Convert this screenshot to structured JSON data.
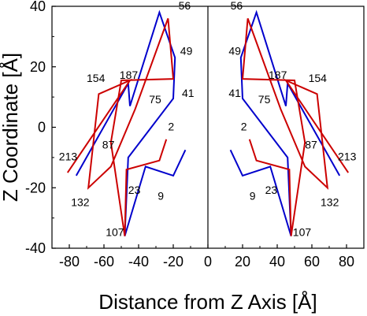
{
  "chart_data": {
    "type": "line",
    "title": "",
    "xlabel": "Distance from Z Axis [Å]",
    "ylabel": "Z Coordinate [Å]",
    "xlim": [
      -90,
      90
    ],
    "ylim": [
      -40,
      40
    ],
    "x_ticks": [
      -80,
      -60,
      -40,
      -20,
      0,
      20,
      40,
      60,
      80
    ],
    "y_ticks": [
      -40,
      -20,
      0,
      20,
      40
    ],
    "grid": false,
    "legend": "none",
    "colors": {
      "blue": "#0000cc",
      "red": "#cc0000"
    },
    "series": [
      {
        "color": "#0000cc",
        "side": "left",
        "points": [
          [
            -13,
            -7.5
          ],
          [
            -20,
            -16
          ],
          [
            -36,
            -13
          ],
          [
            -48,
            -36
          ],
          [
            -46,
            -10
          ],
          [
            -20,
            9.5
          ],
          [
            -19,
            23
          ],
          [
            -28,
            38
          ],
          [
            -45,
            7
          ],
          [
            -46,
            14.5
          ],
          [
            -76,
            -16
          ]
        ]
      },
      {
        "color": "#cc0000",
        "side": "left",
        "points": [
          [
            -24,
            -4
          ],
          [
            -28,
            -11
          ],
          [
            -47,
            -14
          ],
          [
            -48,
            -36
          ],
          [
            -56,
            -5
          ],
          [
            -50,
            15.5
          ],
          [
            -20,
            16
          ],
          [
            -23,
            36
          ],
          [
            -42,
            6
          ],
          [
            -56,
            -13
          ],
          [
            -69,
            -20
          ],
          [
            -63,
            11
          ],
          [
            -45,
            15.5
          ],
          [
            -81,
            -15
          ]
        ]
      },
      {
        "color": "#0000cc",
        "side": "right",
        "points": [
          [
            13,
            -7.5
          ],
          [
            20,
            -16
          ],
          [
            36,
            -13
          ],
          [
            48,
            -36
          ],
          [
            46,
            -10
          ],
          [
            20,
            9.5
          ],
          [
            19,
            23
          ],
          [
            28,
            38
          ],
          [
            45,
            7
          ],
          [
            46,
            14.5
          ],
          [
            76,
            -16
          ]
        ]
      },
      {
        "color": "#cc0000",
        "side": "right",
        "points": [
          [
            24,
            -4
          ],
          [
            28,
            -11
          ],
          [
            47,
            -14
          ],
          [
            48,
            -36
          ],
          [
            56,
            -5
          ],
          [
            50,
            15.5
          ],
          [
            20,
            16
          ],
          [
            23,
            36
          ],
          [
            42,
            6
          ],
          [
            56,
            -13
          ],
          [
            69,
            -20
          ],
          [
            63,
            11
          ],
          [
            45,
            15.5
          ],
          [
            81,
            -15
          ]
        ]
      }
    ],
    "annotations": [
      {
        "text": "56",
        "x": -17,
        "y": 39
      },
      {
        "text": "49",
        "x": -16,
        "y": 24
      },
      {
        "text": "187",
        "x": -51,
        "y": 16
      },
      {
        "text": "154",
        "x": -70,
        "y": 15
      },
      {
        "text": "75",
        "x": -34,
        "y": 8
      },
      {
        "text": "41",
        "x": -15,
        "y": 10
      },
      {
        "text": "2",
        "x": -23,
        "y": -1
      },
      {
        "text": "87",
        "x": -61,
        "y": -7
      },
      {
        "text": "213",
        "x": -86,
        "y": -11
      },
      {
        "text": "23",
        "x": -46,
        "y": -22
      },
      {
        "text": "9",
        "x": -29,
        "y": -24
      },
      {
        "text": "132",
        "x": -79,
        "y": -26
      },
      {
        "text": "107",
        "x": -59,
        "y": -36
      },
      {
        "text": "56",
        "x": 13,
        "y": 39
      },
      {
        "text": "49",
        "x": 12,
        "y": 24
      },
      {
        "text": "187",
        "x": 35,
        "y": 16
      },
      {
        "text": "154",
        "x": 58,
        "y": 15
      },
      {
        "text": "75",
        "x": 29,
        "y": 8
      },
      {
        "text": "41",
        "x": 12,
        "y": 10
      },
      {
        "text": "2",
        "x": 19,
        "y": -1
      },
      {
        "text": "87",
        "x": 56,
        "y": -7
      },
      {
        "text": "213",
        "x": 75,
        "y": -11
      },
      {
        "text": "23",
        "x": 33,
        "y": -22
      },
      {
        "text": "9",
        "x": 24,
        "y": -24
      },
      {
        "text": "132",
        "x": 65,
        "y": -26
      },
      {
        "text": "107",
        "x": 49,
        "y": -36
      }
    ]
  }
}
